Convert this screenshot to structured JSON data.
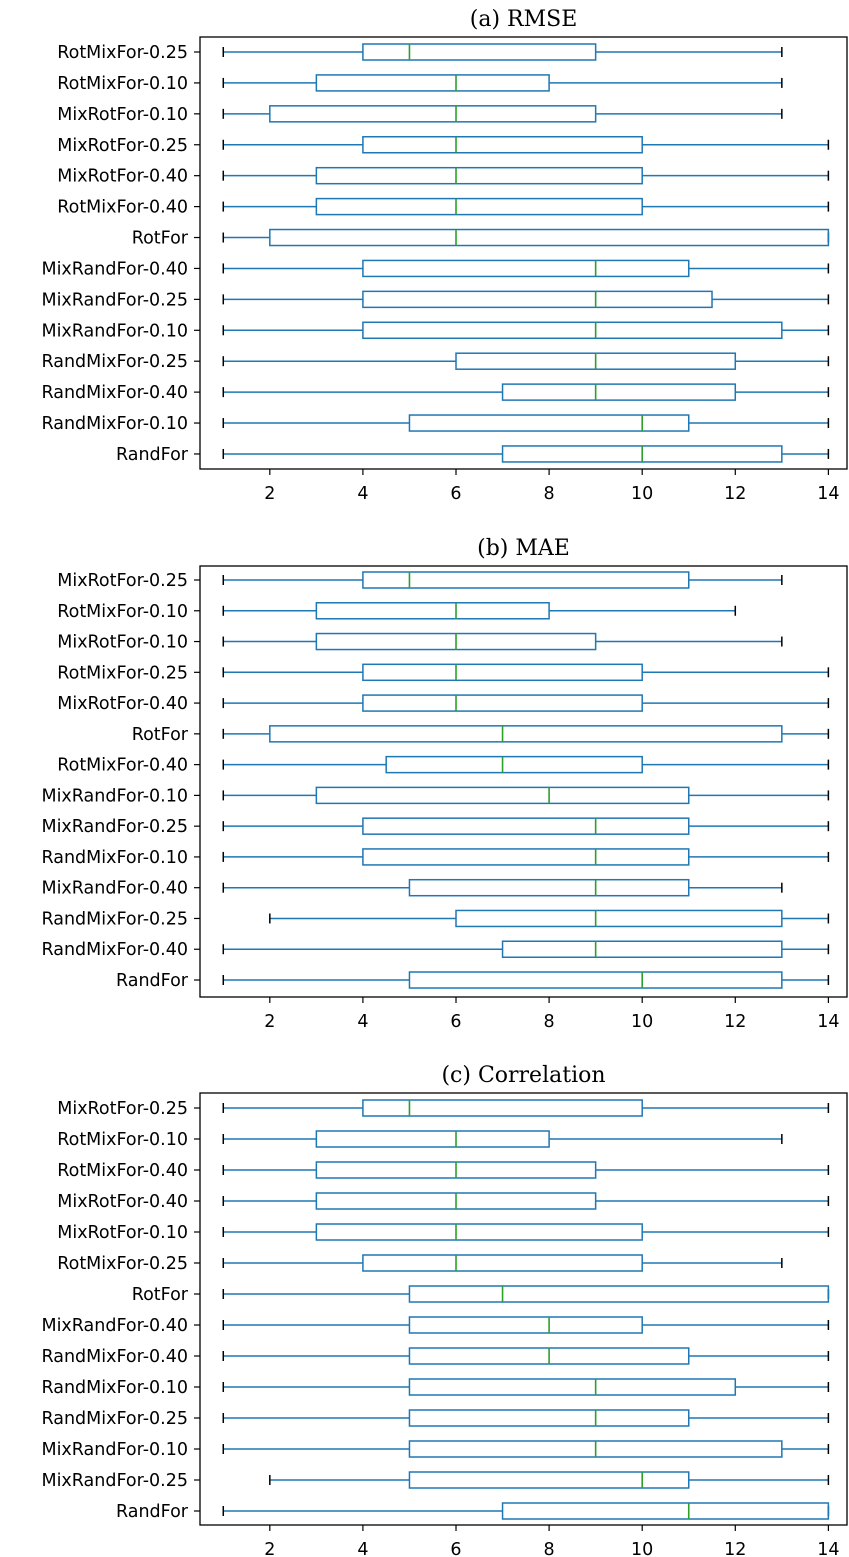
{
  "chart_data": [
    {
      "type": "boxplot",
      "title": "(a) RMSE",
      "xlabel": "",
      "ylabel": "",
      "xlim": [
        0.5,
        14.4
      ],
      "xticks": [
        2,
        4,
        6,
        8,
        10,
        12,
        14
      ],
      "colors": {
        "box": "#1f77b4",
        "median": "#2ca02c",
        "cap": "#000000"
      },
      "rows": [
        {
          "label": "RotMixFor-0.25",
          "min": 1,
          "q1": 4,
          "median": 5,
          "q3": 9,
          "max": 13
        },
        {
          "label": "RotMixFor-0.10",
          "min": 1,
          "q1": 3,
          "median": 6,
          "q3": 8,
          "max": 13
        },
        {
          "label": "MixRotFor-0.10",
          "min": 1,
          "q1": 2,
          "median": 6,
          "q3": 9,
          "max": 13
        },
        {
          "label": "MixRotFor-0.25",
          "min": 1,
          "q1": 4,
          "median": 6,
          "q3": 10,
          "max": 14
        },
        {
          "label": "MixRotFor-0.40",
          "min": 1,
          "q1": 3,
          "median": 6,
          "q3": 10,
          "max": 14
        },
        {
          "label": "RotMixFor-0.40",
          "min": 1,
          "q1": 3,
          "median": 6,
          "q3": 10,
          "max": 14
        },
        {
          "label": "RotFor",
          "min": 1,
          "q1": 2,
          "median": 6,
          "q3": 14,
          "max": 14
        },
        {
          "label": "MixRandFor-0.40",
          "min": 1,
          "q1": 4,
          "median": 9,
          "q3": 11,
          "max": 14
        },
        {
          "label": "MixRandFor-0.25",
          "min": 1,
          "q1": 4,
          "median": 9,
          "q3": 11.5,
          "max": 14
        },
        {
          "label": "MixRandFor-0.10",
          "min": 1,
          "q1": 4,
          "median": 9,
          "q3": 13,
          "max": 14
        },
        {
          "label": "RandMixFor-0.25",
          "min": 1,
          "q1": 6,
          "median": 9,
          "q3": 12,
          "max": 14
        },
        {
          "label": "RandMixFor-0.40",
          "min": 1,
          "q1": 7,
          "median": 9,
          "q3": 12,
          "max": 14
        },
        {
          "label": "RandMixFor-0.10",
          "min": 1,
          "q1": 5,
          "median": 10,
          "q3": 11,
          "max": 14
        },
        {
          "label": "RandFor",
          "min": 1,
          "q1": 7,
          "median": 10,
          "q3": 13,
          "max": 14
        }
      ]
    },
    {
      "type": "boxplot",
      "title": "(b) MAE",
      "xlabel": "",
      "ylabel": "",
      "xlim": [
        0.5,
        14.4
      ],
      "xticks": [
        2,
        4,
        6,
        8,
        10,
        12,
        14
      ],
      "colors": {
        "box": "#1f77b4",
        "median": "#2ca02c",
        "cap": "#000000"
      },
      "rows": [
        {
          "label": "MixRotFor-0.25",
          "min": 1,
          "q1": 4,
          "median": 5,
          "q3": 11,
          "max": 13
        },
        {
          "label": "RotMixFor-0.10",
          "min": 1,
          "q1": 3,
          "median": 6,
          "q3": 8,
          "max": 12
        },
        {
          "label": "MixRotFor-0.10",
          "min": 1,
          "q1": 3,
          "median": 6,
          "q3": 9,
          "max": 13
        },
        {
          "label": "RotMixFor-0.25",
          "min": 1,
          "q1": 4,
          "median": 6,
          "q3": 10,
          "max": 14
        },
        {
          "label": "MixRotFor-0.40",
          "min": 1,
          "q1": 4,
          "median": 6,
          "q3": 10,
          "max": 14
        },
        {
          "label": "RotFor",
          "min": 1,
          "q1": 2,
          "median": 7,
          "q3": 13,
          "max": 14
        },
        {
          "label": "RotMixFor-0.40",
          "min": 1,
          "q1": 4.5,
          "median": 7,
          "q3": 10,
          "max": 14
        },
        {
          "label": "MixRandFor-0.10",
          "min": 1,
          "q1": 3,
          "median": 8,
          "q3": 11,
          "max": 14
        },
        {
          "label": "MixRandFor-0.25",
          "min": 1,
          "q1": 4,
          "median": 9,
          "q3": 11,
          "max": 14
        },
        {
          "label": "RandMixFor-0.10",
          "min": 1,
          "q1": 4,
          "median": 9,
          "q3": 11,
          "max": 14
        },
        {
          "label": "MixRandFor-0.40",
          "min": 1,
          "q1": 5,
          "median": 9,
          "q3": 11,
          "max": 13
        },
        {
          "label": "RandMixFor-0.25",
          "min": 2,
          "q1": 6,
          "median": 9,
          "q3": 13,
          "max": 14
        },
        {
          "label": "RandMixFor-0.40",
          "min": 1,
          "q1": 7,
          "median": 9,
          "q3": 13,
          "max": 14
        },
        {
          "label": "RandFor",
          "min": 1,
          "q1": 5,
          "median": 10,
          "q3": 13,
          "max": 14
        }
      ]
    },
    {
      "type": "boxplot",
      "title": "(c) Correlation",
      "xlabel": "",
      "ylabel": "",
      "xlim": [
        0.5,
        14.4
      ],
      "xticks": [
        2,
        4,
        6,
        8,
        10,
        12,
        14
      ],
      "colors": {
        "box": "#1f77b4",
        "median": "#2ca02c",
        "cap": "#000000"
      },
      "rows": [
        {
          "label": "MixRotFor-0.25",
          "min": 1,
          "q1": 4,
          "median": 5,
          "q3": 10,
          "max": 14
        },
        {
          "label": "RotMixFor-0.10",
          "min": 1,
          "q1": 3,
          "median": 6,
          "q3": 8,
          "max": 13
        },
        {
          "label": "RotMixFor-0.40",
          "min": 1,
          "q1": 3,
          "median": 6,
          "q3": 9,
          "max": 14
        },
        {
          "label": "MixRotFor-0.40",
          "min": 1,
          "q1": 3,
          "median": 6,
          "q3": 9,
          "max": 14
        },
        {
          "label": "MixRotFor-0.10",
          "min": 1,
          "q1": 3,
          "median": 6,
          "q3": 10,
          "max": 14
        },
        {
          "label": "RotMixFor-0.25",
          "min": 1,
          "q1": 4,
          "median": 6,
          "q3": 10,
          "max": 13
        },
        {
          "label": "RotFor",
          "min": 1,
          "q1": 5,
          "median": 7,
          "q3": 14,
          "max": 14
        },
        {
          "label": "MixRandFor-0.40",
          "min": 1,
          "q1": 5,
          "median": 8,
          "q3": 10,
          "max": 14
        },
        {
          "label": "RandMixFor-0.40",
          "min": 1,
          "q1": 5,
          "median": 8,
          "q3": 11,
          "max": 14
        },
        {
          "label": "RandMixFor-0.10",
          "min": 1,
          "q1": 5,
          "median": 9,
          "q3": 12,
          "max": 14
        },
        {
          "label": "RandMixFor-0.25",
          "min": 1,
          "q1": 5,
          "median": 9,
          "q3": 11,
          "max": 14
        },
        {
          "label": "MixRandFor-0.10",
          "min": 1,
          "q1": 5,
          "median": 9,
          "q3": 13,
          "max": 14
        },
        {
          "label": "MixRandFor-0.25",
          "min": 2,
          "q1": 5,
          "median": 10,
          "q3": 11,
          "max": 14
        },
        {
          "label": "RandFor",
          "min": 1,
          "q1": 7,
          "median": 11,
          "q3": 14,
          "max": 14
        }
      ]
    }
  ]
}
